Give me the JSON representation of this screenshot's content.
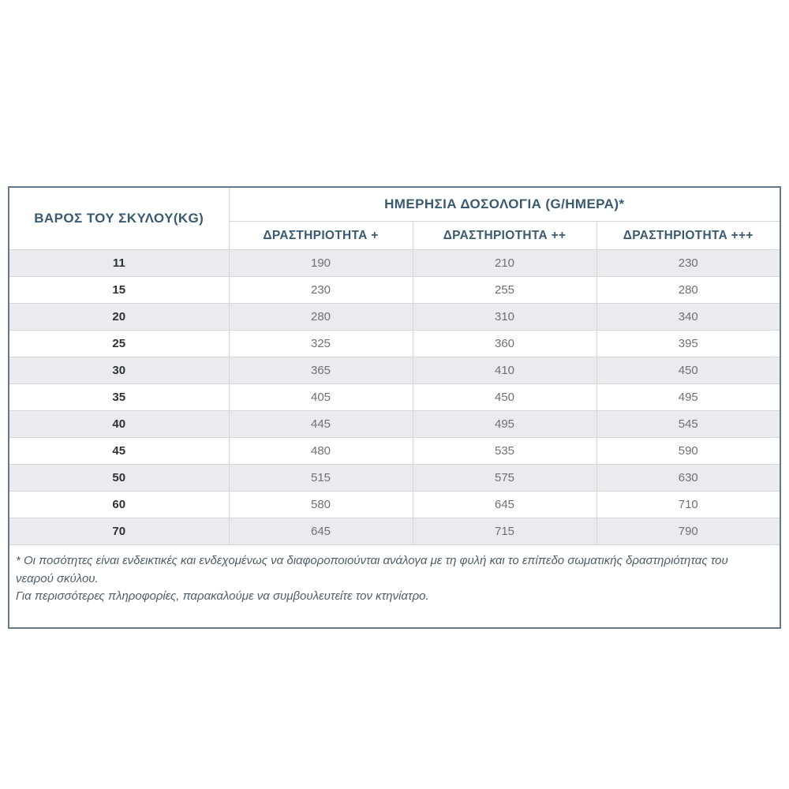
{
  "table": {
    "header": {
      "weight_col": "ΒΑΡΟΣ ΤΟΥ ΣΚΥΛΟΥ(KG)",
      "dosage_group": "ΗΜΕΡΗΣΙΑ ΔΟΣΟΛΟΓΙΑ (G/ΗΜΕΡΑ)*",
      "activity_cols": [
        "ΔΡΑΣΤΗΡΙΟΤΗΤΑ +",
        "ΔΡΑΣΤΗΡΙΟΤΗΤΑ ++",
        "ΔΡΑΣΤΗΡΙΟΤΗΤΑ +++"
      ]
    },
    "rows": [
      {
        "weight": "11",
        "values": [
          "190",
          "210",
          "230"
        ]
      },
      {
        "weight": "15",
        "values": [
          "230",
          "255",
          "280"
        ]
      },
      {
        "weight": "20",
        "values": [
          "280",
          "310",
          "340"
        ]
      },
      {
        "weight": "25",
        "values": [
          "325",
          "360",
          "395"
        ]
      },
      {
        "weight": "30",
        "values": [
          "365",
          "410",
          "450"
        ]
      },
      {
        "weight": "35",
        "values": [
          "405",
          "450",
          "495"
        ]
      },
      {
        "weight": "40",
        "values": [
          "445",
          "495",
          "545"
        ]
      },
      {
        "weight": "45",
        "values": [
          "480",
          "535",
          "590"
        ]
      },
      {
        "weight": "50",
        "values": [
          "515",
          "575",
          "630"
        ]
      },
      {
        "weight": "60",
        "values": [
          "580",
          "645",
          "710"
        ]
      },
      {
        "weight": "70",
        "values": [
          "645",
          "715",
          "790"
        ]
      }
    ],
    "footnote_line1": "* Οι ποσότητες είναι ενδεικτικές και ενδεχομένως να διαφοροποιούνται ανάλογα με τη φυλή και το επίπεδο σωματικής δραστηριότητας του νεαρού σκύλου.",
    "footnote_line2": "Για περισσότερες πληροφορίες, παρακαλούμε να συμβουλευτείτε τον κτηνίατρο."
  },
  "colors": {
    "header_text": "#3a5a70",
    "stripe_bg": "#e9ebee",
    "outer_border": "#647987",
    "inner_border": "#d4d6d8",
    "weight_text": "#2d3136",
    "value_text": "#6d7175",
    "footnote_text": "#4f5d68"
  }
}
